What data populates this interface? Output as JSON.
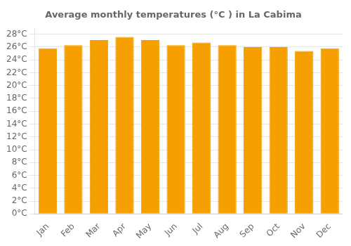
{
  "chart_data": {
    "type": "bar",
    "title": "Average monthly temperatures (°C ) in La Cabima",
    "categories": [
      "Jan",
      "Feb",
      "Mar",
      "Apr",
      "May",
      "Jun",
      "Jul",
      "Aug",
      "Sep",
      "Oct",
      "Nov",
      "Dec"
    ],
    "values": [
      25.8,
      26.3,
      27.1,
      27.6,
      27.1,
      26.3,
      26.7,
      26.3,
      26.0,
      26.0,
      25.4,
      25.8
    ],
    "color": "#F5A000",
    "ylim": [
      0,
      29
    ],
    "yticks": [
      {
        "value": 0,
        "label": "0°C"
      },
      {
        "value": 2,
        "label": "2°C"
      },
      {
        "value": 4,
        "label": "4°C"
      },
      {
        "value": 6,
        "label": "6°C"
      },
      {
        "value": 8,
        "label": "8°C"
      },
      {
        "value": 10,
        "label": "10°C"
      },
      {
        "value": 12,
        "label": "12°C"
      },
      {
        "value": 14,
        "label": "14°C"
      },
      {
        "value": 16,
        "label": "16°C"
      },
      {
        "value": 18,
        "label": "18°C"
      },
      {
        "value": 20,
        "label": "20°C"
      },
      {
        "value": 22,
        "label": "22°C"
      },
      {
        "value": 24,
        "label": "24°C"
      },
      {
        "value": 26,
        "label": "26°C"
      },
      {
        "value": 28,
        "label": "28°C"
      }
    ],
    "grid": true
  }
}
